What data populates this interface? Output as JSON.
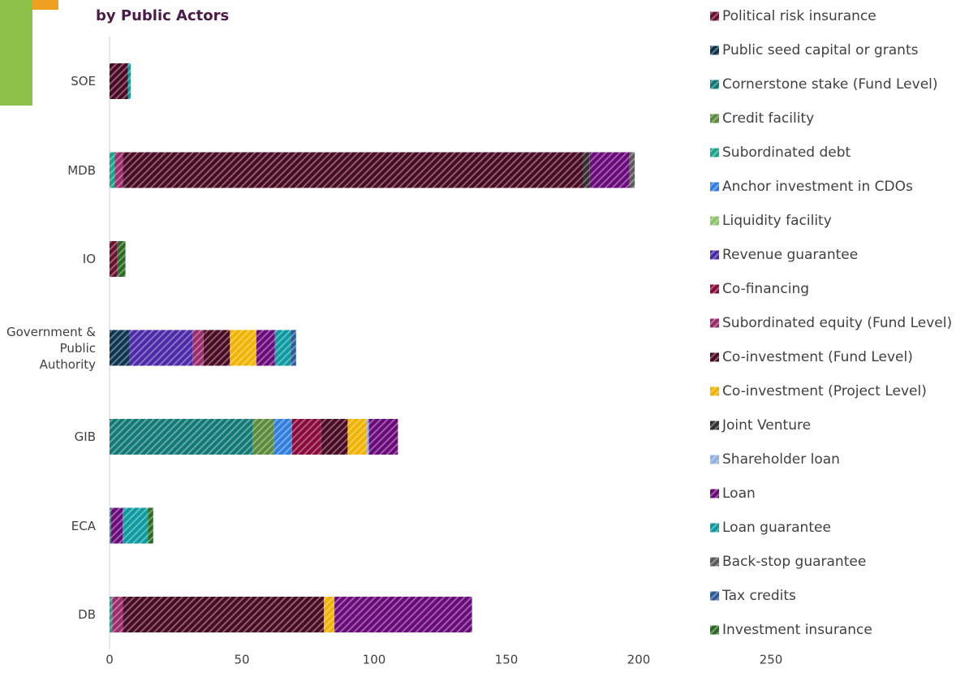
{
  "chart_data": {
    "type": "stacked-barh",
    "title": "by Public Actors",
    "categories": [
      "SOE",
      "MDB",
      "IO",
      "Government & Public Authority",
      "GIB",
      "ECA",
      "DB"
    ],
    "xlim": [
      0,
      250
    ],
    "xticks": [
      0,
      50,
      100,
      150,
      200,
      250
    ],
    "series": [
      {
        "name": "Political risk insurance",
        "color": "#6b1030",
        "values": [
          null,
          null,
          3,
          null,
          null,
          null,
          null
        ]
      },
      {
        "name": "Public seed capital or grants",
        "color": "#0d3550",
        "values": [
          null,
          null,
          null,
          7.5,
          null,
          null,
          null
        ]
      },
      {
        "name": "Cornerstone stake (Fund Level)",
        "color": "#127a74",
        "values": [
          null,
          null,
          null,
          null,
          54,
          null,
          null
        ]
      },
      {
        "name": "Credit facility",
        "color": "#5a8a3a",
        "values": [
          null,
          null,
          null,
          null,
          8,
          null,
          null
        ]
      },
      {
        "name": "Subordinated debt",
        "color": "#17a58a",
        "values": [
          null,
          2,
          null,
          null,
          null,
          0.5,
          1
        ]
      },
      {
        "name": "Anchor investment in CDOs",
        "color": "#2f7fe0",
        "values": [
          null,
          null,
          null,
          null,
          7,
          null,
          null
        ]
      },
      {
        "name": "Liquidity facility",
        "color": "#8cc26a",
        "values": [
          null,
          null,
          null,
          null,
          null,
          null,
          null
        ]
      },
      {
        "name": "Revenue guarantee",
        "color": "#4a2aa8",
        "values": [
          null,
          null,
          null,
          24,
          null,
          null,
          null
        ]
      },
      {
        "name": "Co-financing",
        "color": "#8a0a3c",
        "values": [
          null,
          null,
          null,
          null,
          11,
          null,
          null
        ]
      },
      {
        "name": "Subordinated equity (Fund Level)",
        "color": "#9a2a6a",
        "values": [
          null,
          3,
          null,
          4,
          null,
          null,
          4
        ]
      },
      {
        "name": "Co-investment (Fund Level)",
        "color": "#4a0a24",
        "values": [
          7,
          174,
          null,
          10,
          10,
          null,
          76
        ]
      },
      {
        "name": "Co-investment (Project Level)",
        "color": "#f0b400",
        "values": [
          null,
          null,
          null,
          10,
          7,
          null,
          4
        ]
      },
      {
        "name": "Joint Venture",
        "color": "#303030",
        "values": [
          null,
          2.5,
          null,
          null,
          null,
          null,
          null
        ]
      },
      {
        "name": "Shareholder loan",
        "color": "#8fb0e0",
        "values": [
          null,
          null,
          null,
          null,
          1,
          null,
          null
        ]
      },
      {
        "name": "Loan",
        "color": "#6a0a7a",
        "values": [
          null,
          15,
          null,
          7,
          11,
          4.5,
          52
        ]
      },
      {
        "name": "Loan guarantee",
        "color": "#0a9aa0",
        "values": [
          1,
          null,
          null,
          6,
          null,
          9.5,
          null
        ]
      },
      {
        "name": "Back-stop guarantee",
        "color": "#5a5a5a",
        "values": [
          null,
          2,
          null,
          null,
          null,
          null,
          null
        ]
      },
      {
        "name": "Tax credits",
        "color": "#2a5a9a",
        "values": [
          null,
          null,
          null,
          2,
          null,
          null,
          null
        ]
      },
      {
        "name": "Investment insurance",
        "color": "#2a6a20",
        "values": [
          null,
          null,
          3,
          null,
          null,
          2,
          null
        ]
      }
    ]
  }
}
